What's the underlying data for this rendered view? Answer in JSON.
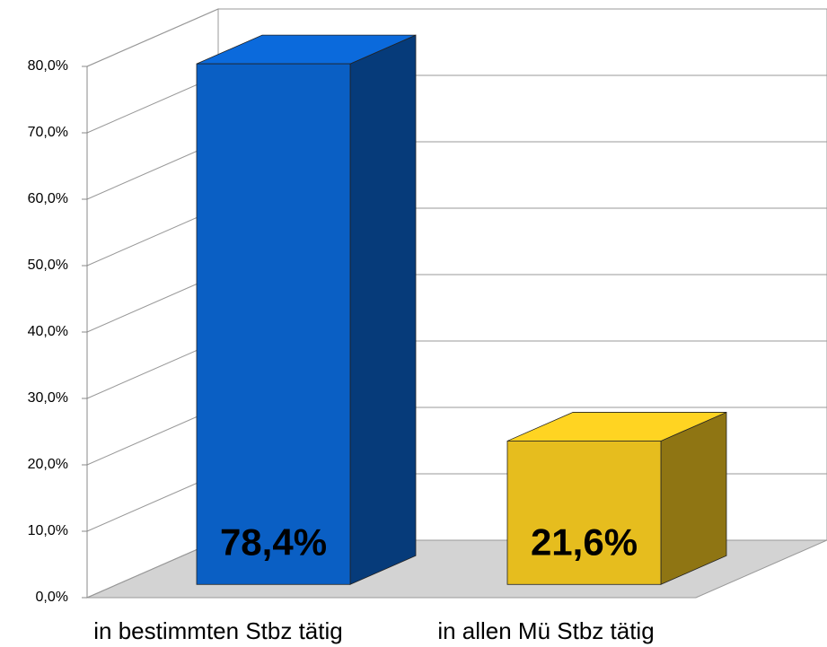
{
  "chart_data": {
    "type": "bar3d",
    "categories": [
      "in bestimmten Stbz tätig",
      "in allen Mü Stbz tätig"
    ],
    "values": [
      78.4,
      21.6
    ],
    "value_labels": [
      "78,4%",
      "21,6%"
    ],
    "colors": [
      "#0a5fc4",
      "#e6bd1e"
    ],
    "ylim": [
      0,
      80
    ],
    "yticks": [
      {
        "value": 0,
        "label": "0,0%"
      },
      {
        "value": 10,
        "label": "10,0%"
      },
      {
        "value": 20,
        "label": "20,0%"
      },
      {
        "value": 30,
        "label": "30,0%"
      },
      {
        "value": 40,
        "label": "40,0%"
      },
      {
        "value": 50,
        "label": "50,0%"
      },
      {
        "value": 60,
        "label": "60,0%"
      },
      {
        "value": 70,
        "label": "70,0%"
      },
      {
        "value": 80,
        "label": "80,0%"
      }
    ],
    "grid": true
  }
}
